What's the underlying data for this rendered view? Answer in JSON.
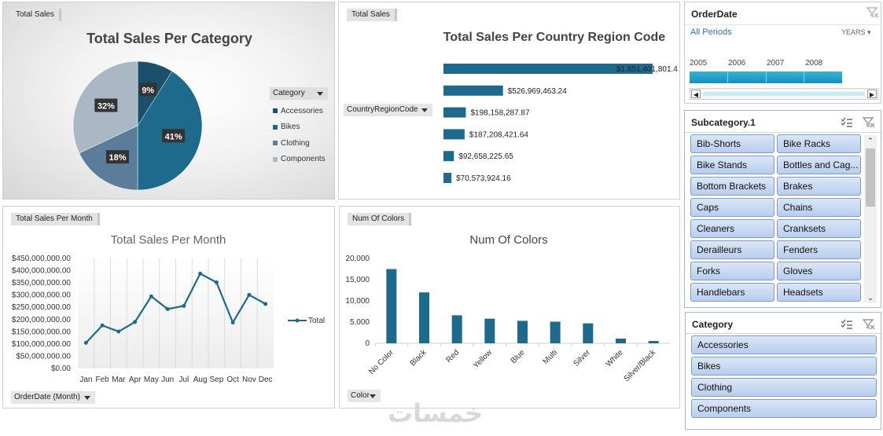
{
  "panels": {
    "category": {
      "tag": "Total Sales",
      "title": "Total Sales Per Category",
      "legend_header": "Category",
      "chart_data": {
        "type": "pie",
        "title": "Total Sales Per Category",
        "categories": [
          "Accessories",
          "Bikes",
          "Clothing",
          "Components"
        ],
        "values": [
          9,
          41,
          18,
          32
        ],
        "labels": [
          "9%",
          "41%",
          "18%",
          "32%"
        ],
        "colors": [
          "#1b4f6b",
          "#1e6a8d",
          "#5c7d99",
          "#aab7c4"
        ],
        "legend_position": "right"
      }
    },
    "country": {
      "tag": "Total Sales",
      "title": "Total Sales Per Country Region Code",
      "field_button": "CountryRegionCode",
      "chart_data": {
        "type": "bar",
        "orientation": "horizontal",
        "title": "Total Sales Per Country Region Code",
        "values": [
          1851401801.4,
          526969463.24,
          198158287.87,
          187208421.64,
          92658225.65,
          70573924.16
        ],
        "labels": [
          "$1,851,401,801.4",
          "$526,969,463.24",
          "$198,158,287.87",
          "$187,208,421.64",
          "$92,658,225.65",
          "$70,573,924.16"
        ],
        "color": "#1e6a8d"
      }
    },
    "month": {
      "tag": "Total Sales Per Month",
      "title": "Total Sales Per Month",
      "field_button": "OrderDate (Month)",
      "legend": "Total",
      "chart_data": {
        "type": "line",
        "title": "Total Sales Per Month",
        "categories": [
          "Jan",
          "Feb",
          "Mar",
          "Apr",
          "May",
          "Jun",
          "Jul",
          "Aug",
          "Sep",
          "Oct",
          "Nov",
          "Dec"
        ],
        "series": [
          {
            "name": "Total",
            "values": [
              105000000,
              176000000,
              151000000,
              190000000,
              295000000,
              243000000,
              256000000,
              388000000,
              352000000,
              188000000,
              301000000,
              264000000
            ]
          }
        ],
        "yticks": [
          "$0.00",
          "$50,000,000.00",
          "$100,000,000.00",
          "$150,000,000.00",
          "$200,000,000.00",
          "$250,000,000.00",
          "$300,000,000.00",
          "$350,000,000.00",
          "$400,000,000.00",
          "$450,000,000.00"
        ],
        "ylim": [
          0,
          450000000
        ],
        "color": "#1e6a8d"
      }
    },
    "colors": {
      "tag": "Num Of Colors",
      "title": "Num Of Colors",
      "field_button": "Color",
      "chart_data": {
        "type": "bar",
        "title": "Num Of Colors",
        "categories": [
          "No Color",
          "Black",
          "Red",
          "Yellow",
          "Blue",
          "Multi",
          "Silver",
          "White",
          "Silver/Black"
        ],
        "values": [
          17500,
          12000,
          6600,
          5800,
          5300,
          5100,
          4700,
          1100,
          550
        ],
        "yticks": [
          "0",
          "5,000",
          "10,000",
          "15,000",
          "20,000"
        ],
        "ylim": [
          0,
          20000
        ],
        "color": "#1e6a8d"
      }
    }
  },
  "timeline": {
    "title": "OrderDate",
    "periods": "All Periods",
    "level": "YEARS",
    "years": [
      "2005",
      "2006",
      "2007",
      "2008"
    ],
    "color": "#1c9cc4"
  },
  "subcategory": {
    "title": "Subcategory.1",
    "items": [
      "Bib-Shorts",
      "Bike Racks",
      "Bike Stands",
      "Bottles and Cag...",
      "Bottom Brackets",
      "Brakes",
      "Caps",
      "Chains",
      "Cleaners",
      "Cranksets",
      "Derailleurs",
      "Fenders",
      "Forks",
      "Gloves",
      "Handlebars",
      "Headsets"
    ]
  },
  "category_slicer": {
    "title": "Category",
    "items": [
      "Accessories",
      "Bikes",
      "Clothing",
      "Components"
    ]
  },
  "watermark": "خمسات"
}
